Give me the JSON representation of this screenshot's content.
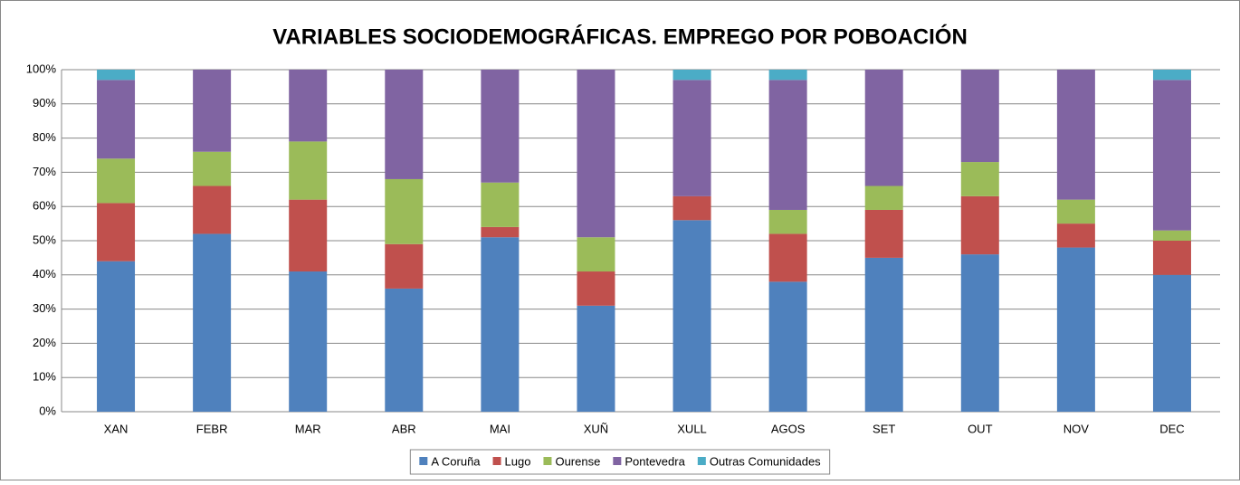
{
  "chart_data": {
    "type": "stacked_bar_100",
    "title": "VARIABLES SOCIODEMOGRÁFICAS. EMPREGO POR POBOACIÓN",
    "categories": [
      "XAN",
      "FEBR",
      "MAR",
      "ABR",
      "MAI",
      "XUÑ",
      "XULL",
      "AGOS",
      "SET",
      "OUT",
      "NOV",
      "DEC"
    ],
    "series": [
      {
        "name": "A Coruña",
        "color": "#4f81bd",
        "values": [
          44,
          52,
          41,
          36,
          51,
          31,
          56,
          38,
          45,
          46,
          48,
          40
        ]
      },
      {
        "name": "Lugo",
        "color": "#c0504d",
        "values": [
          17,
          14,
          21,
          13,
          3,
          10,
          7,
          14,
          14,
          17,
          7,
          10
        ]
      },
      {
        "name": "Ourense",
        "color": "#9bbb59",
        "values": [
          13,
          10,
          17,
          19,
          13,
          10,
          0,
          7,
          7,
          10,
          7,
          3
        ]
      },
      {
        "name": "Pontevedra",
        "color": "#8064a2",
        "values": [
          23,
          24,
          21,
          32,
          33,
          49,
          34,
          38,
          34,
          27,
          38,
          44
        ]
      },
      {
        "name": "Outras Comunidades",
        "color": "#4bacc6",
        "values": [
          3,
          0,
          0,
          0,
          0,
          0,
          3,
          3,
          0,
          0,
          0,
          3
        ]
      }
    ],
    "ylim": [
      0,
      100
    ],
    "yticks": [
      {
        "value": 0,
        "label": "0%"
      },
      {
        "value": 10,
        "label": "10%"
      },
      {
        "value": 20,
        "label": "20%"
      },
      {
        "value": 30,
        "label": "30%"
      },
      {
        "value": 40,
        "label": "40%"
      },
      {
        "value": 50,
        "label": "50%"
      },
      {
        "value": 60,
        "label": "60%"
      },
      {
        "value": 70,
        "label": "70%"
      },
      {
        "value": 80,
        "label": "80%"
      },
      {
        "value": 90,
        "label": "90%"
      },
      {
        "value": 100,
        "label": "100%"
      }
    ],
    "grid": true,
    "legend": "bottom"
  }
}
